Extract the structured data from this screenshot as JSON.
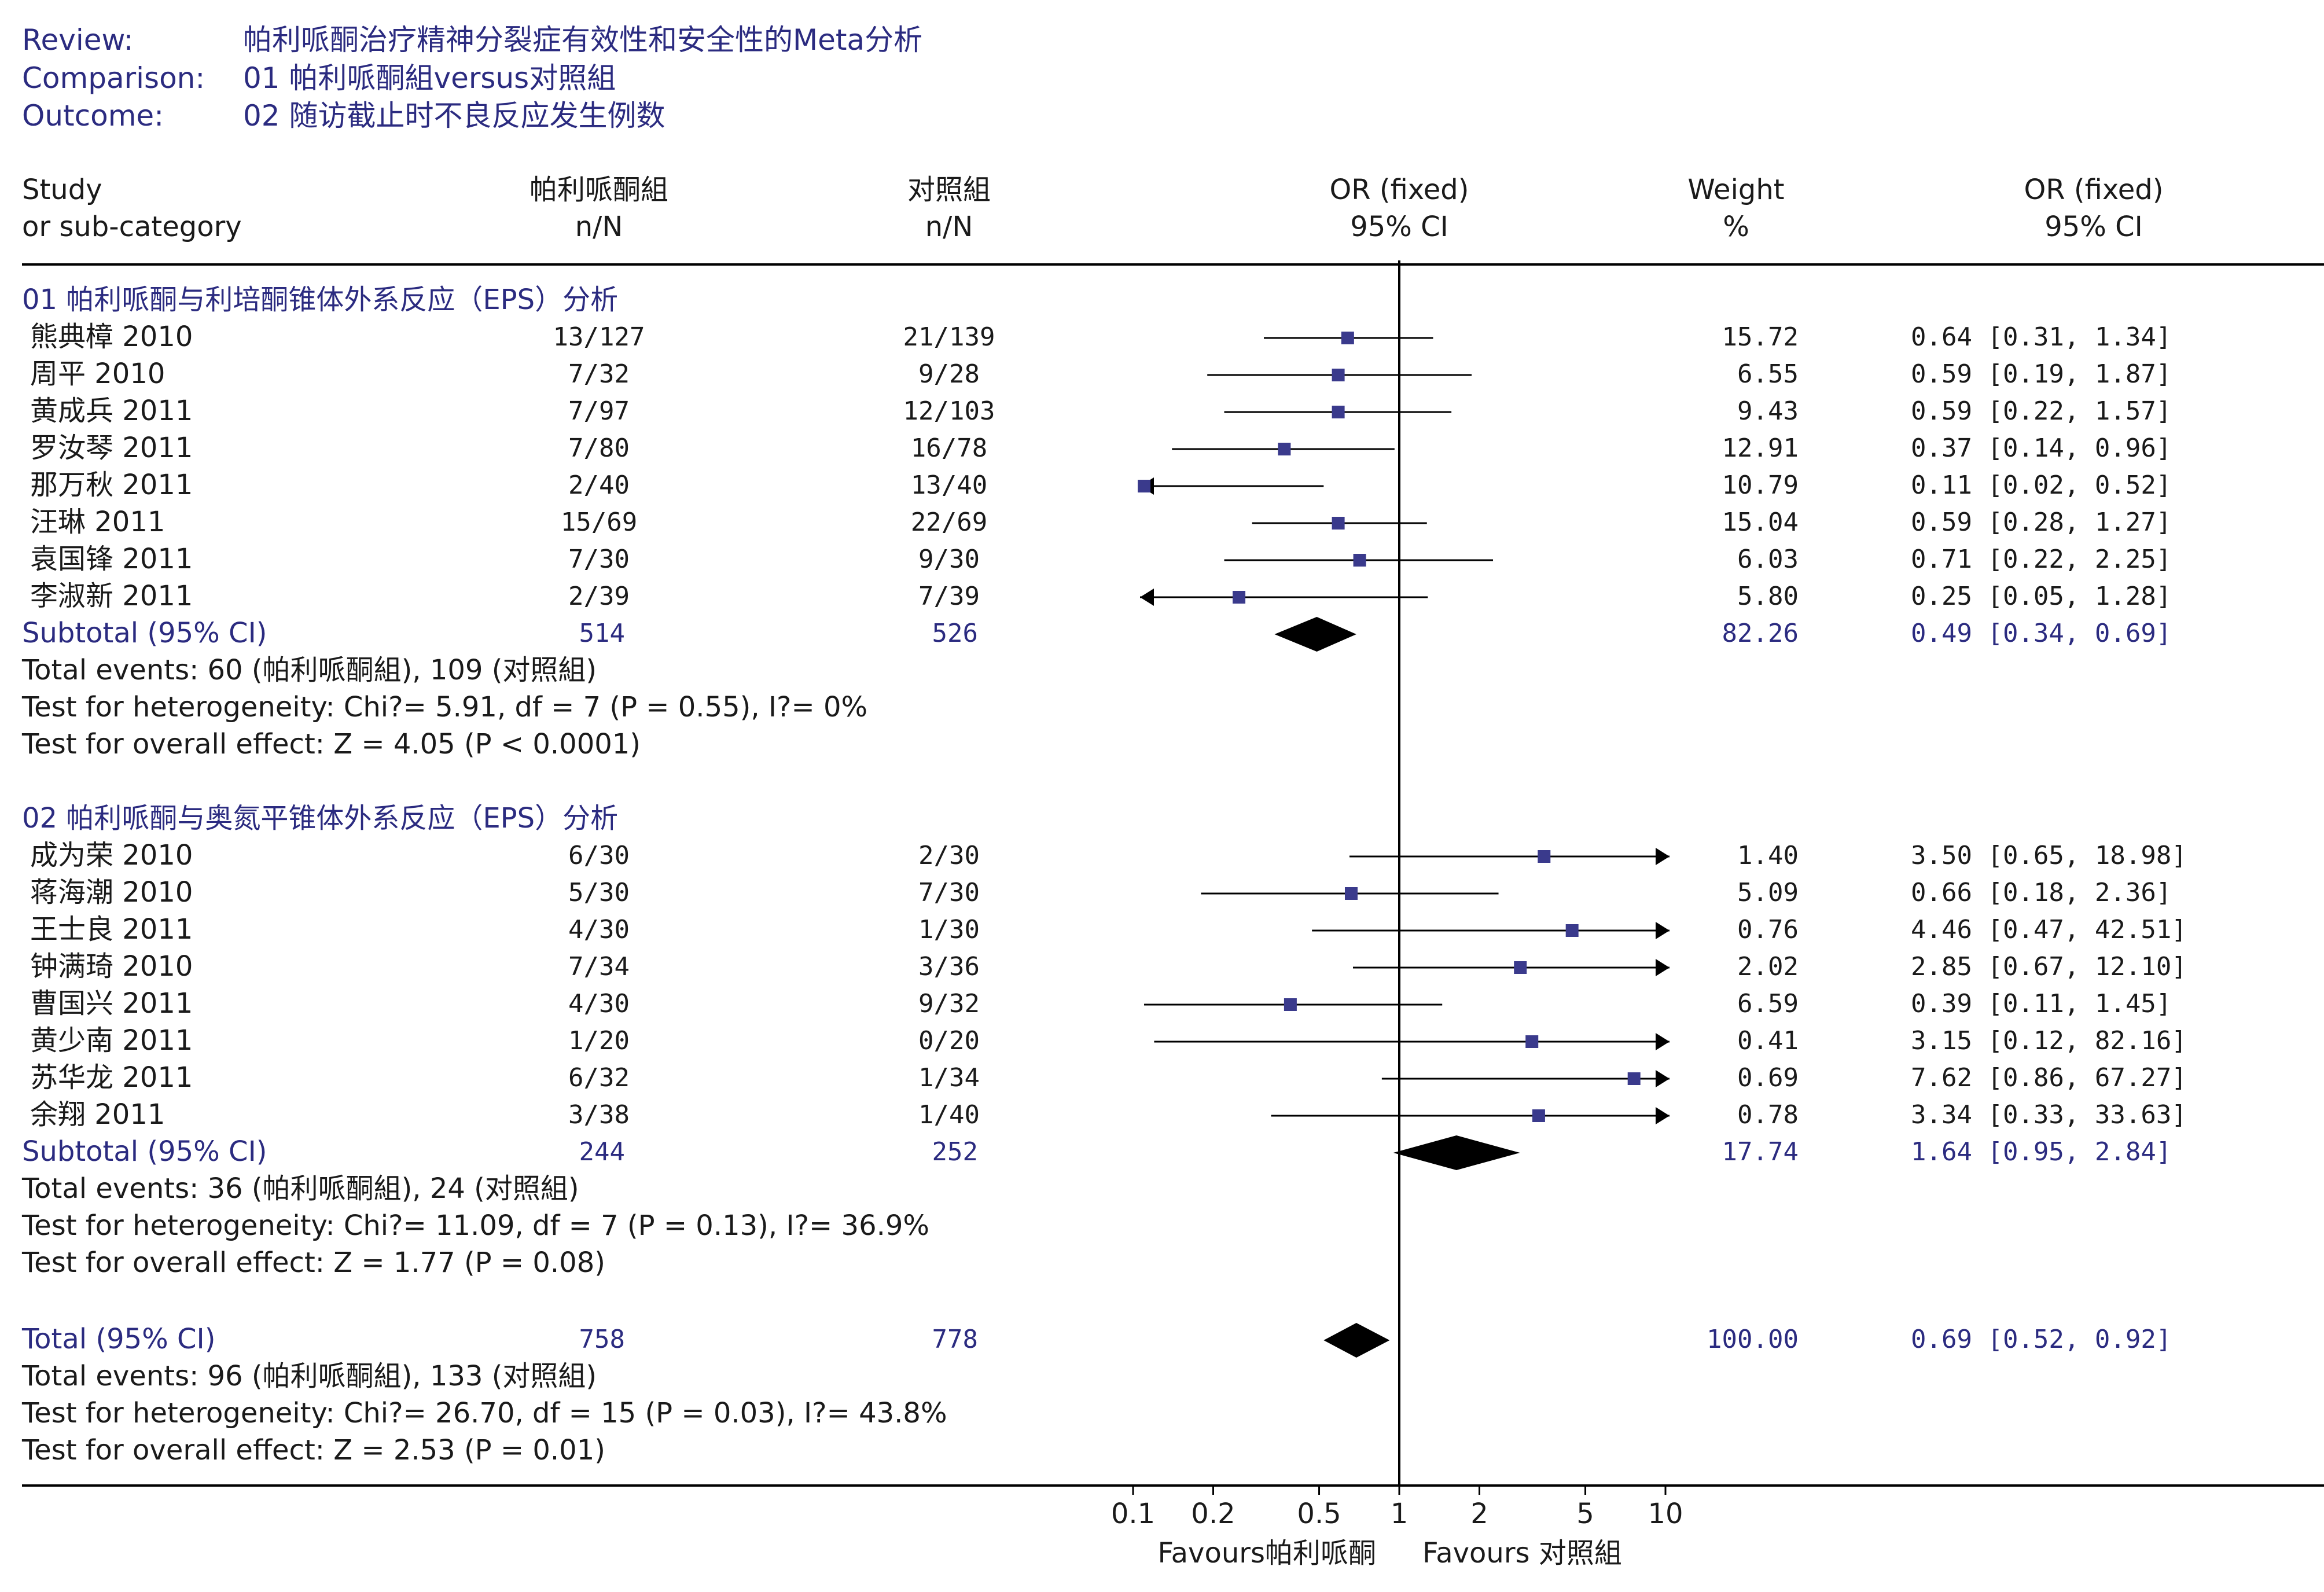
{
  "review": {
    "review_label": "Review:",
    "review_value": "帕利哌酮治疗精神分裂症有效性和安全性的Meta分析",
    "comparison_label": "Comparison:",
    "comparison_value": "01 帕利哌酮組versus对照組",
    "outcome_label": "Outcome:",
    "outcome_value": "02 随访截止时不良反应发生例数"
  },
  "columns": {
    "study_1": "Study",
    "study_2": "or sub-category",
    "treat_1": "帕利哌酮組",
    "treat_2": "n/N",
    "ctrl_1": "对照組",
    "ctrl_2": "n/N",
    "or_plot_1": "OR (fixed)",
    "or_plot_2": "95% CI",
    "weight_1": "Weight",
    "weight_2": "%",
    "or_text_1": "OR (fixed)",
    "or_text_2": "95% CI"
  },
  "chart_data": {
    "type": "forest",
    "scale": "log",
    "x_ticks": [
      0.1,
      0.2,
      0.5,
      1,
      2,
      5,
      10
    ],
    "x_tick_labels": [
      "0.1",
      "0.2",
      "0.5",
      "1",
      "2",
      "5",
      "10"
    ],
    "xlim": [
      0.1,
      10
    ],
    "favours_left": "Favours帕利哌酮",
    "favours_right": "Favours 对照組",
    "groups": [
      {
        "title": "01 帕利哌酮与利培酮锥体外系反应（EPS）分析",
        "studies": [
          {
            "name": "熊典樟 2010",
            "treat": "13/127",
            "ctrl": "21/139",
            "weight": "15.72",
            "or": 0.64,
            "lo": 0.31,
            "hi": 1.34,
            "ci_text": "0.64 [0.31, 1.34]"
          },
          {
            "name": "周平 2010",
            "treat": "7/32",
            "ctrl": "9/28",
            "weight": "6.55",
            "or": 0.59,
            "lo": 0.19,
            "hi": 1.87,
            "ci_text": "0.59 [0.19, 1.87]"
          },
          {
            "name": "黄成兵 2011",
            "treat": "7/97",
            "ctrl": "12/103",
            "weight": "9.43",
            "or": 0.59,
            "lo": 0.22,
            "hi": 1.57,
            "ci_text": "0.59 [0.22, 1.57]"
          },
          {
            "name": "罗汝琴 2011",
            "treat": "7/80",
            "ctrl": "16/78",
            "weight": "12.91",
            "or": 0.37,
            "lo": 0.14,
            "hi": 0.96,
            "ci_text": "0.37 [0.14, 0.96]"
          },
          {
            "name": "那万秋 2011",
            "treat": "2/40",
            "ctrl": "13/40",
            "weight": "10.79",
            "or": 0.11,
            "lo": 0.02,
            "hi": 0.52,
            "ci_text": "0.11 [0.02, 0.52]"
          },
          {
            "name": "汪琳 2011",
            "treat": "15/69",
            "ctrl": "22/69",
            "weight": "15.04",
            "or": 0.59,
            "lo": 0.28,
            "hi": 1.27,
            "ci_text": "0.59 [0.28, 1.27]"
          },
          {
            "name": "袁国锋 2011",
            "treat": "7/30",
            "ctrl": "9/30",
            "weight": "6.03",
            "or": 0.71,
            "lo": 0.22,
            "hi": 2.25,
            "ci_text": "0.71 [0.22, 2.25]"
          },
          {
            "name": "李淑新 2011",
            "treat": "2/39",
            "ctrl": "7/39",
            "weight": "5.80",
            "or": 0.25,
            "lo": 0.05,
            "hi": 1.28,
            "ci_text": "0.25 [0.05, 1.28]"
          }
        ],
        "subtotal": {
          "label": "Subtotal (95% CI)",
          "treat": "514",
          "ctrl": "526",
          "weight": "82.26",
          "or": 0.49,
          "lo": 0.34,
          "hi": 0.69,
          "ci_text": "0.49 [0.34, 0.69]"
        },
        "events": "Total events: 60 (帕利哌酮組), 109 (对照組)",
        "heterogeneity": "Test for heterogeneity: Chi?= 5.91, df = 7 (P = 0.55), I?= 0%",
        "overall": "Test for overall effect: Z = 4.05 (P < 0.0001)"
      },
      {
        "title": "02 帕利哌酮与奥氮平锥体外系反应（EPS）分析",
        "studies": [
          {
            "name": "成为荣 2010",
            "treat": "6/30",
            "ctrl": "2/30",
            "weight": "1.40",
            "or": 3.5,
            "lo": 0.65,
            "hi": 18.98,
            "ci_text": "3.50 [0.65, 18.98]"
          },
          {
            "name": "蒋海潮 2010",
            "treat": "5/30",
            "ctrl": "7/30",
            "weight": "5.09",
            "or": 0.66,
            "lo": 0.18,
            "hi": 2.36,
            "ci_text": "0.66 [0.18, 2.36]"
          },
          {
            "name": "王士良 2011",
            "treat": "4/30",
            "ctrl": "1/30",
            "weight": "0.76",
            "or": 4.46,
            "lo": 0.47,
            "hi": 42.51,
            "ci_text": "4.46 [0.47, 42.51]"
          },
          {
            "name": "钟满琦 2010",
            "treat": "7/34",
            "ctrl": "3/36",
            "weight": "2.02",
            "or": 2.85,
            "lo": 0.67,
            "hi": 12.1,
            "ci_text": "2.85 [0.67, 12.10]"
          },
          {
            "name": "曹国兴 2011",
            "treat": "4/30",
            "ctrl": "9/32",
            "weight": "6.59",
            "or": 0.39,
            "lo": 0.11,
            "hi": 1.45,
            "ci_text": "0.39 [0.11, 1.45]"
          },
          {
            "name": "黄少南 2011",
            "treat": "1/20",
            "ctrl": "0/20",
            "weight": "0.41",
            "or": 3.15,
            "lo": 0.12,
            "hi": 82.16,
            "ci_text": "3.15 [0.12, 82.16]"
          },
          {
            "name": "苏华龙 2011",
            "treat": "6/32",
            "ctrl": "1/34",
            "weight": "0.69",
            "or": 7.62,
            "lo": 0.86,
            "hi": 67.27,
            "ci_text": "7.62 [0.86, 67.27]"
          },
          {
            "name": "余翔 2011",
            "treat": "3/38",
            "ctrl": "1/40",
            "weight": "0.78",
            "or": 3.34,
            "lo": 0.33,
            "hi": 33.63,
            "ci_text": "3.34 [0.33, 33.63]"
          }
        ],
        "subtotal": {
          "label": "Subtotal (95% CI)",
          "treat": "244",
          "ctrl": "252",
          "weight": "17.74",
          "or": 1.64,
          "lo": 0.95,
          "hi": 2.84,
          "ci_text": "1.64 [0.95, 2.84]"
        },
        "events": "Total events: 36 (帕利哌酮組), 24 (对照組)",
        "heterogeneity": "Test for heterogeneity: Chi?= 11.09, df = 7 (P = 0.13), I?= 36.9%",
        "overall": "Test for overall effect: Z = 1.77 (P = 0.08)"
      }
    ],
    "total": {
      "label": "Total (95% CI)",
      "treat": "758",
      "ctrl": "778",
      "weight": "100.00",
      "or": 0.69,
      "lo": 0.52,
      "hi": 0.92,
      "ci_text": "0.69 [0.52, 0.92]",
      "events": "Total events: 96 (帕利哌酮組), 133 (对照組)",
      "heterogeneity": "Test for heterogeneity: Chi?= 26.70, df = 15 (P = 0.03), I?= 43.8%",
      "overall": "Test for overall effect: Z = 2.53 (P = 0.01)"
    },
    "colors": {
      "marker": "#3a3a8c",
      "diamond": "#000000",
      "line": "#000000",
      "accent_text": "#2b2b80"
    }
  }
}
